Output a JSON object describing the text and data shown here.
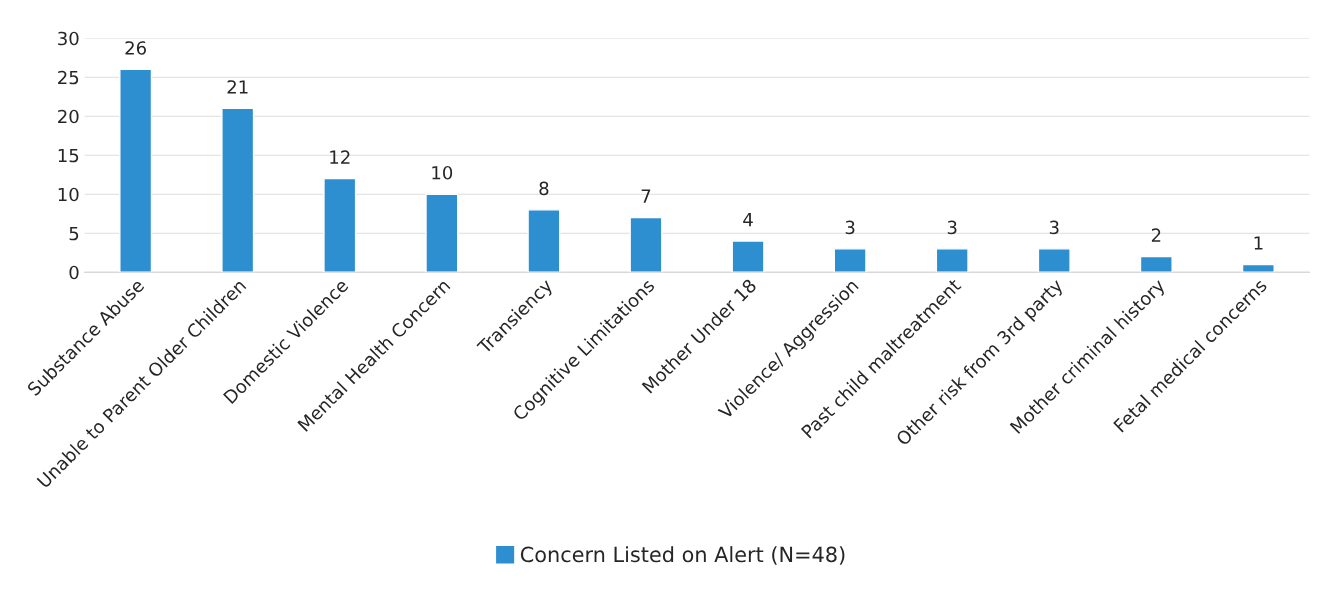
{
  "chart_data": {
    "type": "bar",
    "categories": [
      "Substance Abuse",
      "Unable to Parent Older Children",
      "Domestic Violence",
      "Mental Health Concern",
      "Transiency",
      "Cognitive Limitations",
      "Mother Under 18",
      "Violence/ Aggression",
      "Past child maltreatment",
      "Other risk from 3rd party",
      "Mother criminal history",
      "Fetal medical concerns"
    ],
    "series": [
      {
        "name": "Concern Listed on Alert (N=48)",
        "color": "#2e8fd0",
        "values": [
          26,
          21,
          12,
          10,
          8,
          7,
          4,
          3,
          3,
          3,
          2,
          1
        ]
      }
    ],
    "ylim": [
      0,
      30
    ],
    "yticks": [
      0,
      5,
      10,
      15,
      20,
      25,
      30
    ],
    "grid": "y",
    "legend": "bottom",
    "data_labels": true
  }
}
